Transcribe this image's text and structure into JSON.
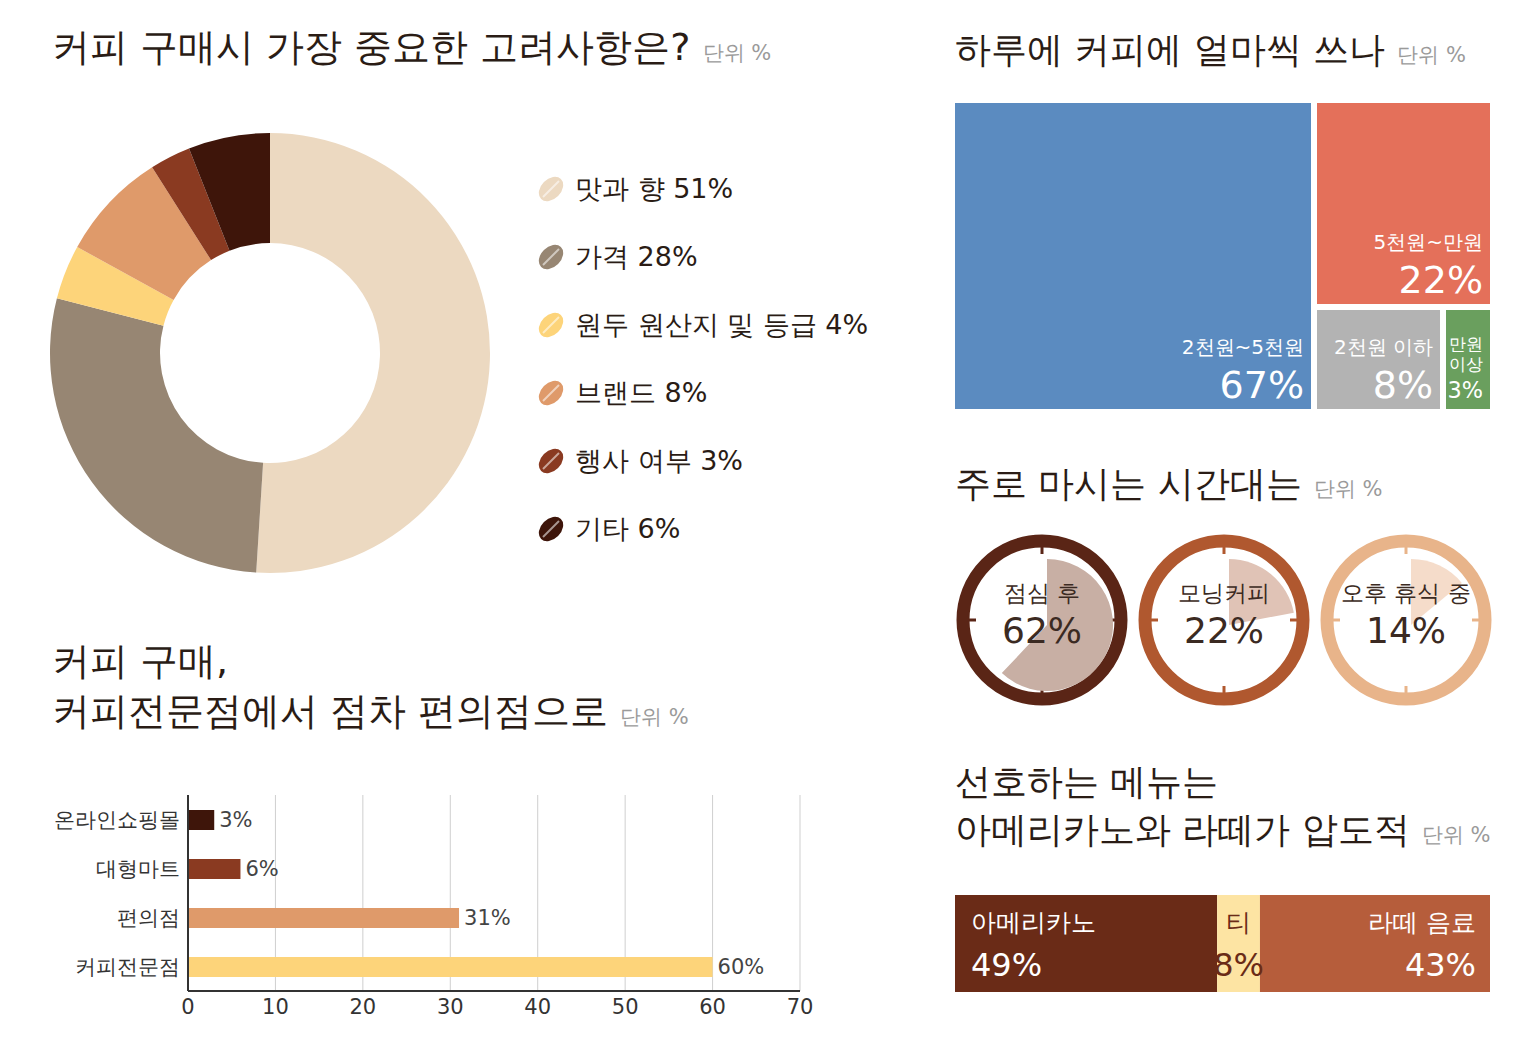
{
  "chart_data": [
    {
      "type": "pie",
      "title": "커피 구매시 가장 중요한 고려사항은?",
      "subtitle": "단위 %",
      "categories": [
        "맛과 향",
        "가격",
        "원두 원산지 및 등급",
        "브랜드",
        "행사 여부",
        "기타"
      ],
      "values": [
        51,
        28,
        4,
        8,
        3,
        6
      ],
      "value_labels": [
        "51%",
        "28%",
        "4%",
        "8%",
        "3%",
        "6%"
      ],
      "colors": [
        "#ecd9c1",
        "#978673",
        "#fdd47a",
        "#df9a6a",
        "#8a3a21",
        "#3e150a"
      ],
      "legend": "right"
    },
    {
      "type": "treemap",
      "title": "하루에 커피에 얼마씩 쓰나",
      "subtitle": "단위 %",
      "categories": [
        "2천원~5천원",
        "5천원~만원",
        "2천원 이하",
        "만원 이상"
      ],
      "values": [
        67,
        22,
        8,
        3
      ],
      "value_labels": [
        "67%",
        "22%",
        "8%",
        "3%"
      ],
      "colors": [
        "#5b8bc0",
        "#e4705a",
        "#b3b3b3",
        "#6a9f5e"
      ],
      "data_labels": true
    },
    {
      "type": "pie",
      "title": "주로 마시는 시간대는",
      "subtitle": "단위 %",
      "categories": [
        "점심 후",
        "모닝커피",
        "오후 휴식 중"
      ],
      "values": [
        62,
        22,
        14
      ],
      "value_labels": [
        "62%",
        "22%",
        "14%"
      ],
      "colors": [
        "#c8afa4",
        "#e0c3b6",
        "#f5dcca"
      ],
      "ylim": [
        0,
        100
      ],
      "data_labels": true
    },
    {
      "type": "bar",
      "title": "커피 구매,\n커피전문점에서 점차 편의점으로",
      "subtitle": "단위 %",
      "orientation": "horizontal",
      "categories": [
        "온라인쇼핑몰",
        "대형마트",
        "편의점",
        "커피전문점"
      ],
      "values": [
        3,
        6,
        31,
        60
      ],
      "value_labels": [
        "3%",
        "6%",
        "31%",
        "60%"
      ],
      "colors": [
        "#3e150a",
        "#8a3a21",
        "#df9a6a",
        "#fdd47a"
      ],
      "xlim": [
        0,
        70
      ],
      "xticks": [
        0,
        10,
        20,
        30,
        40,
        50,
        60,
        70
      ],
      "grid": true,
      "data_labels": true
    },
    {
      "type": "bar",
      "title": "선호하는 메뉴는\n아메리카노와 라떼가 압도적",
      "subtitle": "단위 %",
      "orientation": "horizontal",
      "stacked": true,
      "series": [
        {
          "name": "아메리카노",
          "color": "#6a2b17",
          "values": [
            49
          ],
          "value_labels": [
            "49%"
          ]
        },
        {
          "name": "티",
          "color": "#fde4a3",
          "values": [
            8
          ],
          "value_labels": [
            "8%"
          ]
        },
        {
          "name": "라떼 음료",
          "color": "#b65d3b",
          "values": [
            43
          ],
          "value_labels": [
            "43%"
          ]
        }
      ],
      "data_labels": true,
      "tick_labels": false
    }
  ]
}
